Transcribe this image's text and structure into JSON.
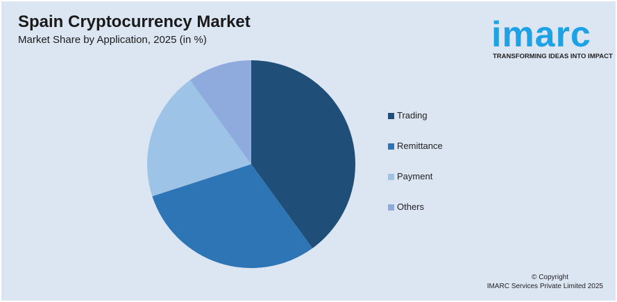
{
  "chart_data": {
    "type": "pie",
    "title": "Spain Cryptocurrency Market",
    "subtitle": "Market Share by Application, 2025 (in %)",
    "legend_position": "right",
    "categories": [
      "Trading",
      "Remittance",
      "Payment",
      "Others"
    ],
    "values": [
      40,
      30,
      20,
      10
    ],
    "colors": [
      "#1f4e79",
      "#2e75b6",
      "#9dc3e6",
      "#8faadc"
    ]
  },
  "logo": {
    "word": "imarc",
    "tagline": "TRANSFORMING IDEAS INTO IMPACT"
  },
  "footer": {
    "copyright": "© Copyright",
    "company": "IMARC Services Private Limited 2025"
  }
}
